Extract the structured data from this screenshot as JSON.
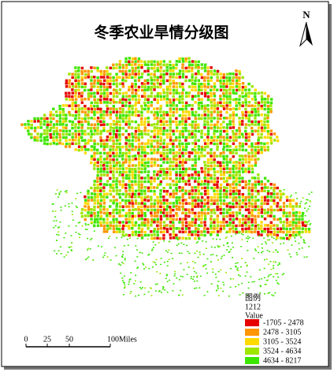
{
  "title": "冬季农业旱情分级图",
  "north": "N",
  "legend": {
    "title": "图例",
    "layer": "1212",
    "field": "Value",
    "classes": [
      {
        "label": "-1705 - 2478",
        "color": "#e60000"
      },
      {
        "label": "2478 - 3105",
        "color": "#ff9500"
      },
      {
        "label": "3105 - 3524",
        "color": "#ffd900"
      },
      {
        "label": "3524 - 4634",
        "color": "#9ee600"
      },
      {
        "label": "4634 - 8217",
        "color": "#3de600"
      }
    ]
  },
  "scale_bar": {
    "labels": [
      "0",
      "25",
      "50",
      "100Miles"
    ]
  }
}
